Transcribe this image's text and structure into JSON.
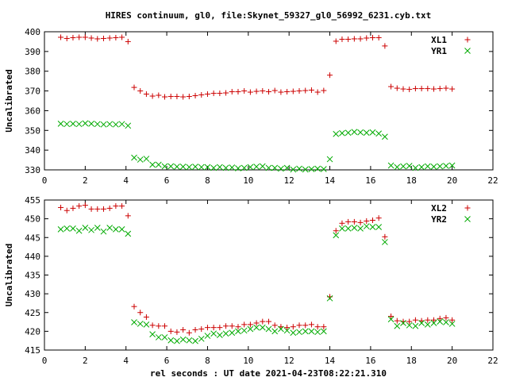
{
  "figure": {
    "title": "HIRES continuum, gl0, file:Skynet_59327_gl0_56992_6231.cyb.txt",
    "xlabel": "rel seconds : UT date 2021-04-23T08:22:21.310"
  },
  "colors": {
    "red": "#cc0000",
    "green": "#00aa00",
    "axis": "#000000"
  },
  "chart_data": [
    {
      "type": "scatter",
      "ylabel": "Uncalibrated",
      "xlim": [
        0,
        22
      ],
      "ylim": [
        330,
        400
      ],
      "xticks": [
        0,
        2,
        4,
        6,
        8,
        10,
        12,
        14,
        16,
        18,
        20,
        22
      ],
      "yticks": [
        330,
        340,
        350,
        360,
        370,
        380,
        390,
        400
      ],
      "legend_position": "top-right",
      "series": [
        {
          "name": "XL1",
          "marker": "plus",
          "color": "#cc0000",
          "points": [
            [
              0.8,
              397.2
            ],
            [
              1.1,
              396.6
            ],
            [
              1.4,
              397.0
            ],
            [
              1.7,
              397.2
            ],
            [
              2.0,
              397.2
            ],
            [
              2.3,
              396.8
            ],
            [
              2.6,
              396.4
            ],
            [
              2.9,
              396.6
            ],
            [
              3.2,
              396.8
            ],
            [
              3.5,
              397.0
            ],
            [
              3.8,
              397.2
            ],
            [
              4.1,
              395.0
            ],
            [
              4.4,
              371.8
            ],
            [
              4.7,
              370.0
            ],
            [
              5.0,
              368.4
            ],
            [
              5.3,
              367.4
            ],
            [
              5.6,
              367.8
            ],
            [
              5.9,
              367.0
            ],
            [
              6.2,
              367.2
            ],
            [
              6.5,
              367.2
            ],
            [
              6.8,
              367.0
            ],
            [
              7.1,
              367.2
            ],
            [
              7.4,
              367.6
            ],
            [
              7.7,
              368.0
            ],
            [
              8.0,
              368.4
            ],
            [
              8.3,
              368.8
            ],
            [
              8.6,
              368.8
            ],
            [
              8.9,
              369.0
            ],
            [
              9.2,
              369.6
            ],
            [
              9.5,
              369.6
            ],
            [
              9.8,
              370.0
            ],
            [
              10.1,
              369.4
            ],
            [
              10.4,
              369.8
            ],
            [
              10.7,
              370.0
            ],
            [
              11.0,
              369.6
            ],
            [
              11.3,
              370.2
            ],
            [
              11.6,
              369.4
            ],
            [
              11.9,
              369.6
            ],
            [
              12.2,
              369.8
            ],
            [
              12.5,
              370.0
            ],
            [
              12.8,
              370.2
            ],
            [
              13.1,
              370.4
            ],
            [
              13.4,
              369.4
            ],
            [
              13.7,
              370.2
            ],
            [
              14.0,
              378.0
            ],
            [
              14.3,
              395.2
            ],
            [
              14.6,
              396.2
            ],
            [
              14.9,
              396.2
            ],
            [
              15.2,
              396.4
            ],
            [
              15.5,
              396.4
            ],
            [
              15.8,
              396.8
            ],
            [
              16.1,
              397.0
            ],
            [
              16.4,
              397.0
            ],
            [
              16.7,
              392.8
            ],
            [
              17.0,
              372.2
            ],
            [
              17.3,
              371.4
            ],
            [
              17.6,
              371.0
            ],
            [
              17.9,
              370.8
            ],
            [
              18.2,
              371.2
            ],
            [
              18.5,
              371.2
            ],
            [
              18.8,
              371.2
            ],
            [
              19.1,
              371.0
            ],
            [
              19.4,
              371.2
            ],
            [
              19.7,
              371.4
            ],
            [
              20.0,
              371.0
            ]
          ]
        },
        {
          "name": "YR1",
          "marker": "cross",
          "color": "#00aa00",
          "points": [
            [
              0.8,
              353.4
            ],
            [
              1.1,
              353.2
            ],
            [
              1.4,
              353.4
            ],
            [
              1.7,
              353.2
            ],
            [
              2.0,
              353.6
            ],
            [
              2.3,
              353.4
            ],
            [
              2.6,
              353.2
            ],
            [
              2.9,
              353.0
            ],
            [
              3.2,
              353.2
            ],
            [
              3.5,
              353.0
            ],
            [
              3.8,
              353.2
            ],
            [
              4.1,
              352.4
            ],
            [
              4.4,
              336.2
            ],
            [
              4.7,
              335.2
            ],
            [
              5.0,
              335.6
            ],
            [
              5.3,
              332.6
            ],
            [
              5.6,
              332.6
            ],
            [
              5.9,
              331.8
            ],
            [
              6.2,
              331.8
            ],
            [
              6.5,
              331.6
            ],
            [
              6.8,
              331.6
            ],
            [
              7.1,
              331.4
            ],
            [
              7.4,
              331.6
            ],
            [
              7.7,
              331.4
            ],
            [
              8.0,
              331.4
            ],
            [
              8.3,
              331.0
            ],
            [
              8.6,
              331.4
            ],
            [
              8.9,
              331.0
            ],
            [
              9.2,
              331.2
            ],
            [
              9.5,
              330.8
            ],
            [
              9.8,
              331.0
            ],
            [
              10.1,
              331.4
            ],
            [
              10.4,
              331.6
            ],
            [
              10.7,
              331.8
            ],
            [
              11.0,
              331.0
            ],
            [
              11.3,
              331.0
            ],
            [
              11.6,
              330.6
            ],
            [
              11.9,
              331.0
            ],
            [
              12.2,
              330.2
            ],
            [
              12.5,
              330.6
            ],
            [
              12.8,
              330.2
            ],
            [
              13.1,
              330.4
            ],
            [
              13.4,
              330.6
            ],
            [
              13.7,
              330.4
            ],
            [
              14.0,
              335.4
            ],
            [
              14.3,
              348.2
            ],
            [
              14.6,
              348.6
            ],
            [
              14.9,
              348.8
            ],
            [
              15.2,
              349.2
            ],
            [
              15.5,
              349.0
            ],
            [
              15.8,
              348.8
            ],
            [
              16.1,
              349.0
            ],
            [
              16.4,
              348.4
            ],
            [
              16.7,
              346.8
            ],
            [
              17.0,
              332.2
            ],
            [
              17.3,
              331.4
            ],
            [
              17.6,
              331.8
            ],
            [
              17.9,
              332.0
            ],
            [
              18.2,
              331.0
            ],
            [
              18.5,
              331.4
            ],
            [
              18.8,
              331.8
            ],
            [
              19.1,
              331.6
            ],
            [
              19.4,
              331.8
            ],
            [
              19.7,
              332.0
            ],
            [
              20.0,
              332.2
            ]
          ]
        }
      ]
    },
    {
      "type": "scatter",
      "ylabel": "Uncalibrated",
      "xlim": [
        0,
        22
      ],
      "ylim": [
        415,
        455
      ],
      "xticks": [
        0,
        2,
        4,
        6,
        8,
        10,
        12,
        14,
        16,
        18,
        20,
        22
      ],
      "yticks": [
        415,
        420,
        425,
        430,
        435,
        440,
        445,
        450,
        455
      ],
      "legend_position": "top-right",
      "series": [
        {
          "name": "XL2",
          "marker": "plus",
          "color": "#cc0000",
          "points": [
            [
              0.8,
              453.0
            ],
            [
              1.1,
              452.2
            ],
            [
              1.4,
              452.8
            ],
            [
              1.7,
              453.4
            ],
            [
              2.0,
              453.6
            ],
            [
              2.3,
              452.6
            ],
            [
              2.6,
              452.6
            ],
            [
              2.9,
              452.6
            ],
            [
              3.2,
              452.8
            ],
            [
              3.5,
              453.4
            ],
            [
              3.8,
              453.4
            ],
            [
              4.1,
              450.8
            ],
            [
              4.4,
              426.6
            ],
            [
              4.7,
              425.0
            ],
            [
              5.0,
              423.8
            ],
            [
              5.3,
              421.6
            ],
            [
              5.6,
              421.4
            ],
            [
              5.9,
              421.4
            ],
            [
              6.2,
              420.0
            ],
            [
              6.5,
              419.8
            ],
            [
              6.8,
              420.4
            ],
            [
              7.1,
              419.6
            ],
            [
              7.4,
              420.4
            ],
            [
              7.7,
              420.6
            ],
            [
              8.0,
              421.0
            ],
            [
              8.3,
              421.0
            ],
            [
              8.6,
              421.0
            ],
            [
              8.9,
              421.4
            ],
            [
              9.2,
              421.4
            ],
            [
              9.5,
              421.2
            ],
            [
              9.8,
              421.8
            ],
            [
              10.1,
              421.8
            ],
            [
              10.4,
              422.2
            ],
            [
              10.7,
              422.6
            ],
            [
              11.0,
              422.6
            ],
            [
              11.3,
              421.6
            ],
            [
              11.6,
              421.2
            ],
            [
              11.9,
              421.0
            ],
            [
              12.2,
              421.2
            ],
            [
              12.5,
              421.6
            ],
            [
              12.8,
              421.6
            ],
            [
              13.1,
              421.8
            ],
            [
              13.4,
              421.2
            ],
            [
              13.7,
              421.2
            ],
            [
              14.0,
              429.2
            ],
            [
              14.3,
              446.8
            ],
            [
              14.6,
              448.8
            ],
            [
              14.9,
              449.2
            ],
            [
              15.2,
              449.2
            ],
            [
              15.5,
              449.0
            ],
            [
              15.8,
              449.4
            ],
            [
              16.1,
              449.6
            ],
            [
              16.4,
              450.2
            ],
            [
              16.7,
              445.2
            ],
            [
              17.0,
              424.0
            ],
            [
              17.3,
              422.8
            ],
            [
              17.6,
              422.6
            ],
            [
              17.9,
              422.6
            ],
            [
              18.2,
              423.0
            ],
            [
              18.5,
              422.8
            ],
            [
              18.8,
              423.0
            ],
            [
              19.1,
              423.0
            ],
            [
              19.4,
              423.4
            ],
            [
              19.7,
              423.6
            ],
            [
              20.0,
              423.0
            ]
          ]
        },
        {
          "name": "YR2",
          "marker": "cross",
          "color": "#00aa00",
          "points": [
            [
              0.8,
              447.2
            ],
            [
              1.1,
              447.4
            ],
            [
              1.4,
              447.4
            ],
            [
              1.7,
              446.8
            ],
            [
              2.0,
              447.6
            ],
            [
              2.3,
              447.0
            ],
            [
              2.6,
              447.6
            ],
            [
              2.9,
              446.6
            ],
            [
              3.2,
              447.6
            ],
            [
              3.5,
              447.2
            ],
            [
              3.8,
              447.2
            ],
            [
              4.1,
              446.0
            ],
            [
              4.4,
              422.4
            ],
            [
              4.7,
              422.0
            ],
            [
              5.0,
              421.8
            ],
            [
              5.3,
              419.2
            ],
            [
              5.6,
              418.4
            ],
            [
              5.9,
              418.4
            ],
            [
              6.2,
              417.6
            ],
            [
              6.5,
              417.4
            ],
            [
              6.8,
              417.8
            ],
            [
              7.1,
              417.6
            ],
            [
              7.4,
              417.4
            ],
            [
              7.7,
              418.0
            ],
            [
              8.0,
              418.8
            ],
            [
              8.3,
              419.4
            ],
            [
              8.6,
              419.0
            ],
            [
              8.9,
              419.4
            ],
            [
              9.2,
              419.6
            ],
            [
              9.5,
              420.0
            ],
            [
              9.8,
              420.2
            ],
            [
              10.1,
              420.6
            ],
            [
              10.4,
              421.0
            ],
            [
              10.7,
              421.0
            ],
            [
              11.0,
              420.6
            ],
            [
              11.3,
              420.0
            ],
            [
              11.6,
              420.6
            ],
            [
              11.9,
              420.2
            ],
            [
              12.2,
              419.6
            ],
            [
              12.5,
              419.8
            ],
            [
              12.8,
              420.0
            ],
            [
              13.1,
              420.0
            ],
            [
              13.4,
              419.8
            ],
            [
              13.7,
              420.0
            ],
            [
              14.0,
              428.8
            ],
            [
              14.3,
              445.6
            ],
            [
              14.6,
              447.4
            ],
            [
              14.9,
              447.4
            ],
            [
              15.2,
              447.6
            ],
            [
              15.5,
              447.4
            ],
            [
              15.8,
              448.0
            ],
            [
              16.1,
              447.8
            ],
            [
              16.4,
              447.8
            ],
            [
              16.7,
              443.8
            ],
            [
              17.0,
              423.2
            ],
            [
              17.3,
              421.4
            ],
            [
              17.6,
              422.2
            ],
            [
              17.9,
              421.6
            ],
            [
              18.2,
              421.4
            ],
            [
              18.5,
              422.2
            ],
            [
              18.8,
              421.8
            ],
            [
              19.1,
              422.2
            ],
            [
              19.4,
              422.6
            ],
            [
              19.7,
              422.4
            ],
            [
              20.0,
              422.0
            ]
          ]
        }
      ]
    }
  ]
}
